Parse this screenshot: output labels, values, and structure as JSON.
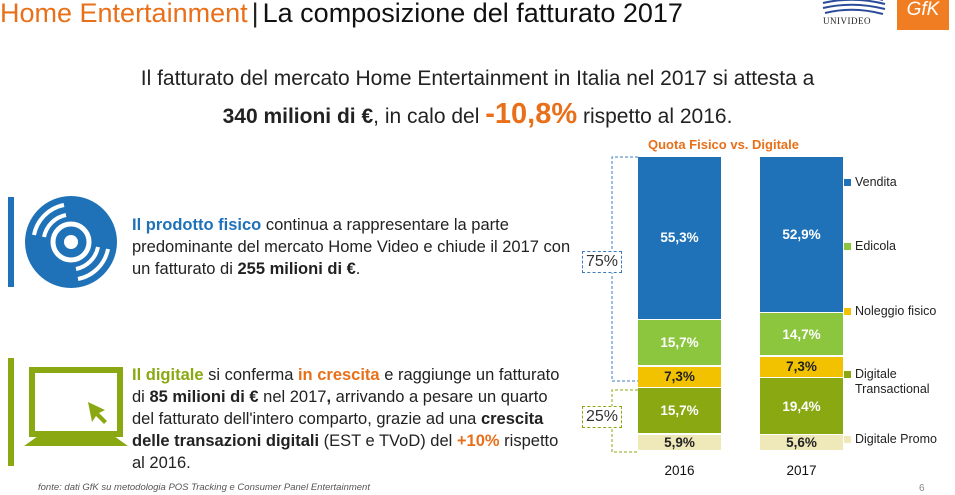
{
  "title": {
    "part1": "Home Entertainment",
    "separator": "|",
    "part2": "La composizione del fatturato 2017"
  },
  "logos": {
    "univideo": "UNIVIDEO",
    "gfk": "GfK"
  },
  "headline": {
    "line1": "Il fatturato del mercato Home Entertainment in Italia nel 2017 si attesta a",
    "line2_bold": "340 milioni di €",
    "line2_mid": ", in calo del",
    "line2_pct": "-10,8%",
    "line2_end": "rispetto al 2016."
  },
  "physical": {
    "highlight": "Il prodotto fisico",
    "text1": " continua a rappresentare la parte predominante del mercato Home Video e chiude il 2017 con un fatturato di ",
    "amount": "255 milioni di €",
    "text2": "."
  },
  "digital": {
    "highlight": "Il digitale",
    "t1": " si conferma ",
    "growth": "in crescita",
    "t2": " e raggiunge un fatturato di ",
    "amount": "85 milioni di €",
    "t3": " nel 2017",
    "t3b": ",",
    "t4": " arrivando a pesare un quarto del fatturato dell'intero comparto, grazie ad una ",
    "tx": "crescita delle transazioni digitali",
    "t5": " (EST e TVoD) del ",
    "pct": "+10%",
    "t6": " rispetto al 2016."
  },
  "brackets": {
    "physical_share": "75%",
    "digital_share": "25%"
  },
  "chart_data": {
    "type": "bar",
    "stacked": true,
    "title": "Quota Fisico vs. Digitale",
    "categories": [
      "2016",
      "2017"
    ],
    "series": [
      {
        "name": "Vendita",
        "color": "#1f72b8",
        "text_color": "#ffffff",
        "values": [
          55.3,
          52.9
        ],
        "labels": [
          "55,3%",
          "52,9%"
        ]
      },
      {
        "name": "Edicola",
        "color": "#8cc63f",
        "text_color": "#ffffff",
        "values": [
          15.7,
          14.7
        ],
        "labels": [
          "15,7%",
          "14,7%"
        ]
      },
      {
        "name": "Noleggio fisico",
        "color": "#f2c200",
        "text_color": "#222222",
        "values": [
          7.3,
          7.3
        ],
        "labels": [
          "7,3%",
          "7,3%"
        ]
      },
      {
        "name": "Digitale Transactional",
        "color": "#8aa812",
        "text_color": "#ffffff",
        "values": [
          15.7,
          19.4
        ],
        "labels": [
          "15,7%",
          "19,4%"
        ]
      },
      {
        "name": "Digitale Promo",
        "color": "#efe8b8",
        "text_color": "#222222",
        "values": [
          5.9,
          5.6
        ],
        "labels": [
          "5,9%",
          "5,6%"
        ]
      }
    ],
    "legend_position": "right"
  },
  "legend": [
    {
      "line1": "Vendita",
      "line2": ""
    },
    {
      "line1": "Edicola",
      "line2": ""
    },
    {
      "line1": "Noleggio fisico",
      "line2": ""
    },
    {
      "line1": "Digitale",
      "line2": "Transactional"
    },
    {
      "line1": "Digitale Promo",
      "line2": ""
    }
  ],
  "footer": {
    "source": "fonte: dati GfK su metodologia POS Tracking e Consumer Panel Entertainment",
    "page": "6"
  }
}
